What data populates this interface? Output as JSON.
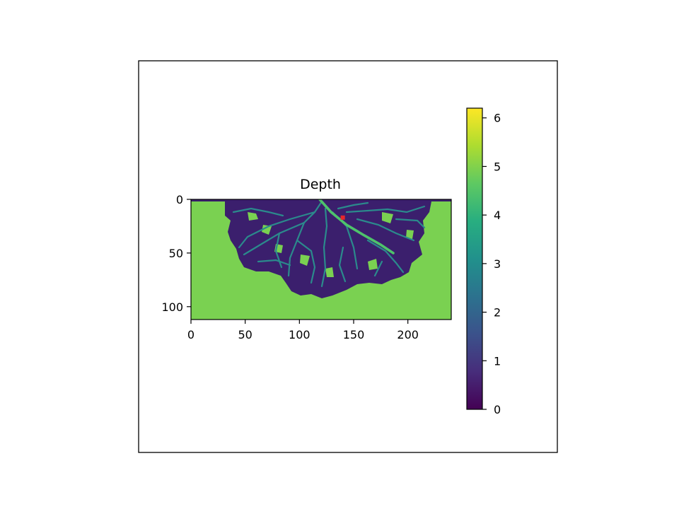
{
  "chart_data": {
    "type": "heatmap",
    "title": "Depth",
    "xlabel": "",
    "ylabel": "",
    "x_range": [
      0,
      240
    ],
    "y_range": [
      0,
      112
    ],
    "x_ticks": [
      0,
      50,
      100,
      150,
      200
    ],
    "y_ticks": [
      0,
      50,
      100
    ],
    "y_inverted": true,
    "grid": false,
    "colormap": "viridis",
    "colorbar": {
      "range": [
        0,
        6.2
      ],
      "ticks": [
        0,
        1,
        2,
        3,
        4,
        5,
        6
      ]
    },
    "regions": [
      {
        "label_value": 4.8,
        "region": "background"
      },
      {
        "label_value": 0.5,
        "region": "dendritic network"
      },
      {
        "label_value": 2.5,
        "region": "channels"
      },
      {
        "label_value": 4.4,
        "region": "main channel"
      }
    ],
    "marker": {
      "x": 140,
      "y": 17,
      "color": "#e8262b"
    },
    "colors": {
      "background": "#7ad151",
      "network": "#3b1f6d",
      "channel": "#2b8a8c",
      "main_channel": "#4ec36b"
    }
  }
}
